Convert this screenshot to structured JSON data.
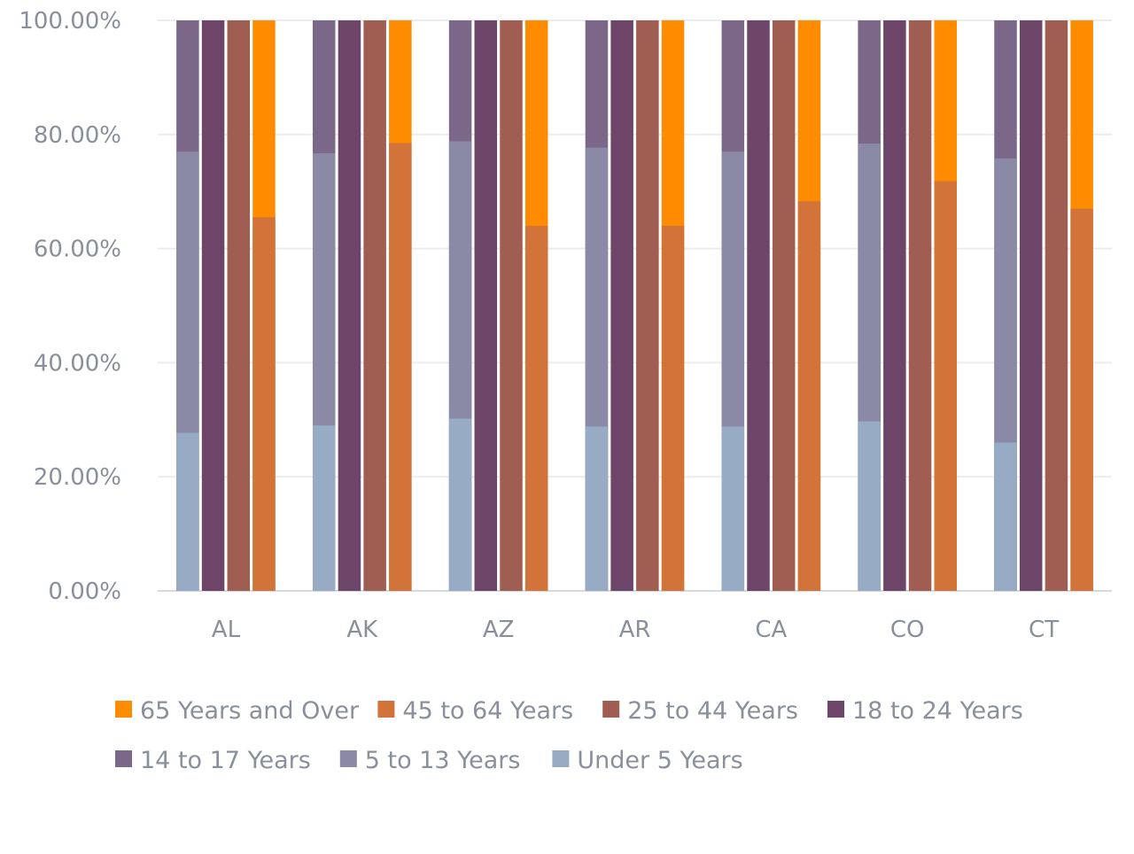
{
  "chart_data": {
    "type": "bar",
    "stacking": "each age group drawn as its own bar starting at 0% (percent-stacked series, shown side by side in pairs)",
    "categories": [
      "AL",
      "AK",
      "AZ",
      "AR",
      "CA",
      "CO",
      "CT"
    ],
    "y_ticks": [
      "0.00%",
      "20.00%",
      "40.00%",
      "60.00%",
      "80.00%",
      "100.00%"
    ],
    "ylim": [
      0,
      100
    ],
    "grid": true,
    "legend_position": "bottom",
    "series": [
      {
        "name": "65 Years and Over",
        "color": "#ff8c00",
        "values": [
          65.5,
          78.5,
          64.0,
          64.0,
          68.3,
          71.8,
          67.0
        ]
      },
      {
        "name": "45 to 64 Years",
        "color": "#d2743a",
        "values": [
          65.5,
          78.5,
          64.0,
          64.0,
          68.3,
          71.8,
          67.0
        ]
      },
      {
        "name": "25 to 44 Years",
        "color": "#a05d52",
        "values": [
          100,
          100,
          100,
          100,
          100,
          100,
          100
        ]
      },
      {
        "name": "18 to 24 Years",
        "color": "#6d4569",
        "values": [
          100,
          100,
          100,
          100,
          100,
          100,
          100
        ]
      },
      {
        "name": "14 to 17 Years",
        "color": "#7b6888",
        "values": [
          77.0,
          76.7,
          78.8,
          77.7,
          77.0,
          78.4,
          75.8
        ]
      },
      {
        "name": "5 to 13 Years",
        "color": "#8a89a6",
        "values": [
          77.0,
          76.7,
          78.8,
          77.7,
          77.0,
          78.4,
          75.8
        ]
      },
      {
        "name": "Under 5 Years",
        "color": "#98abc5",
        "values": [
          27.7,
          29.0,
          30.2,
          28.8,
          28.8,
          29.7,
          26.0
        ]
      }
    ]
  }
}
